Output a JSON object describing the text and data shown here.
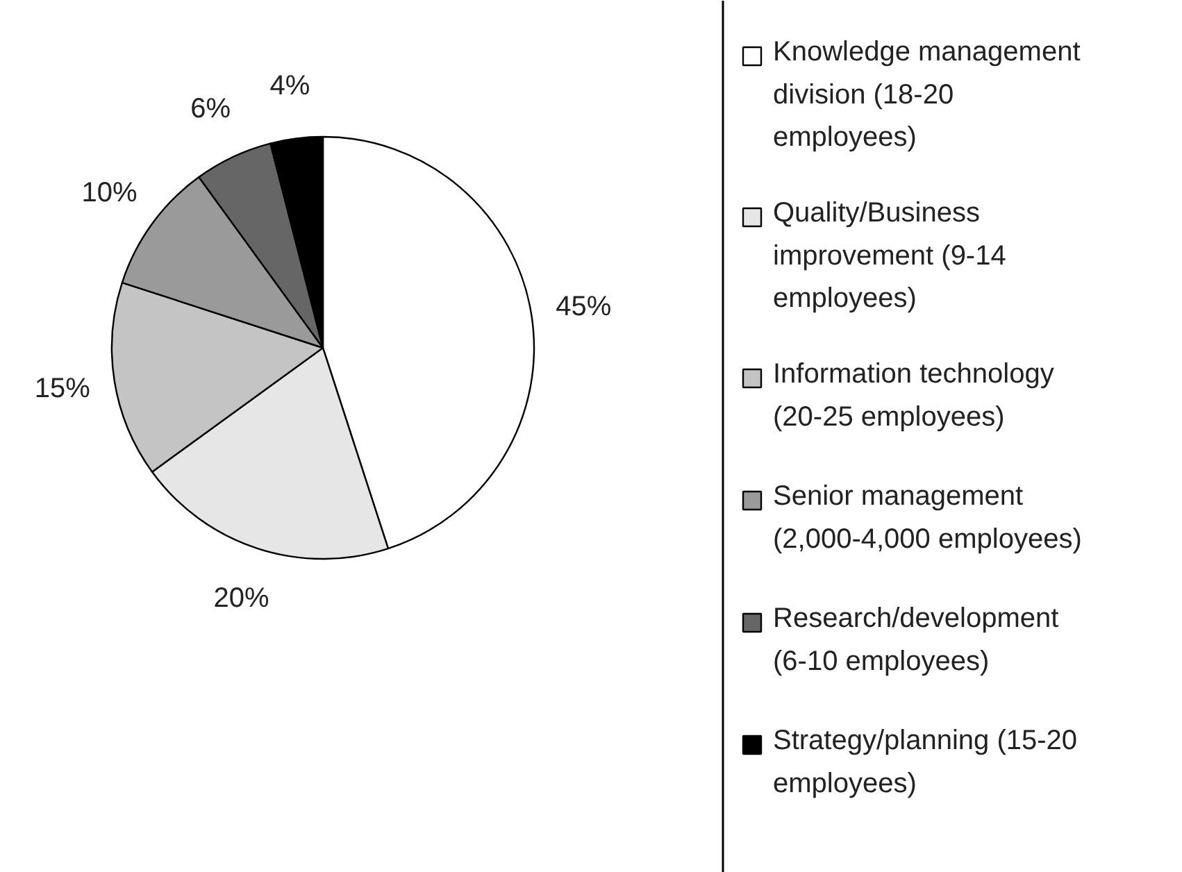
{
  "chart_data": {
    "type": "pie",
    "categories": [
      "Knowledge management division (18-20 employees)",
      "Quality/Business improvement (9-14 employees)",
      "Information technology (20-25 employees)",
      "Senior management (2,000-4,000 employees)",
      "Research/development (6-10 employees)",
      "Strategy/planning (15-20 employees)"
    ],
    "values": [
      45,
      20,
      15,
      10,
      6,
      4
    ],
    "value_labels": [
      "45%",
      "20%",
      "15%",
      "10%",
      "6%",
      "4%"
    ],
    "colors": [
      "#ffffff",
      "#e6e6e6",
      "#c4c4c4",
      "#9a9a9a",
      "#666666",
      "#000000"
    ],
    "legend": "right"
  }
}
